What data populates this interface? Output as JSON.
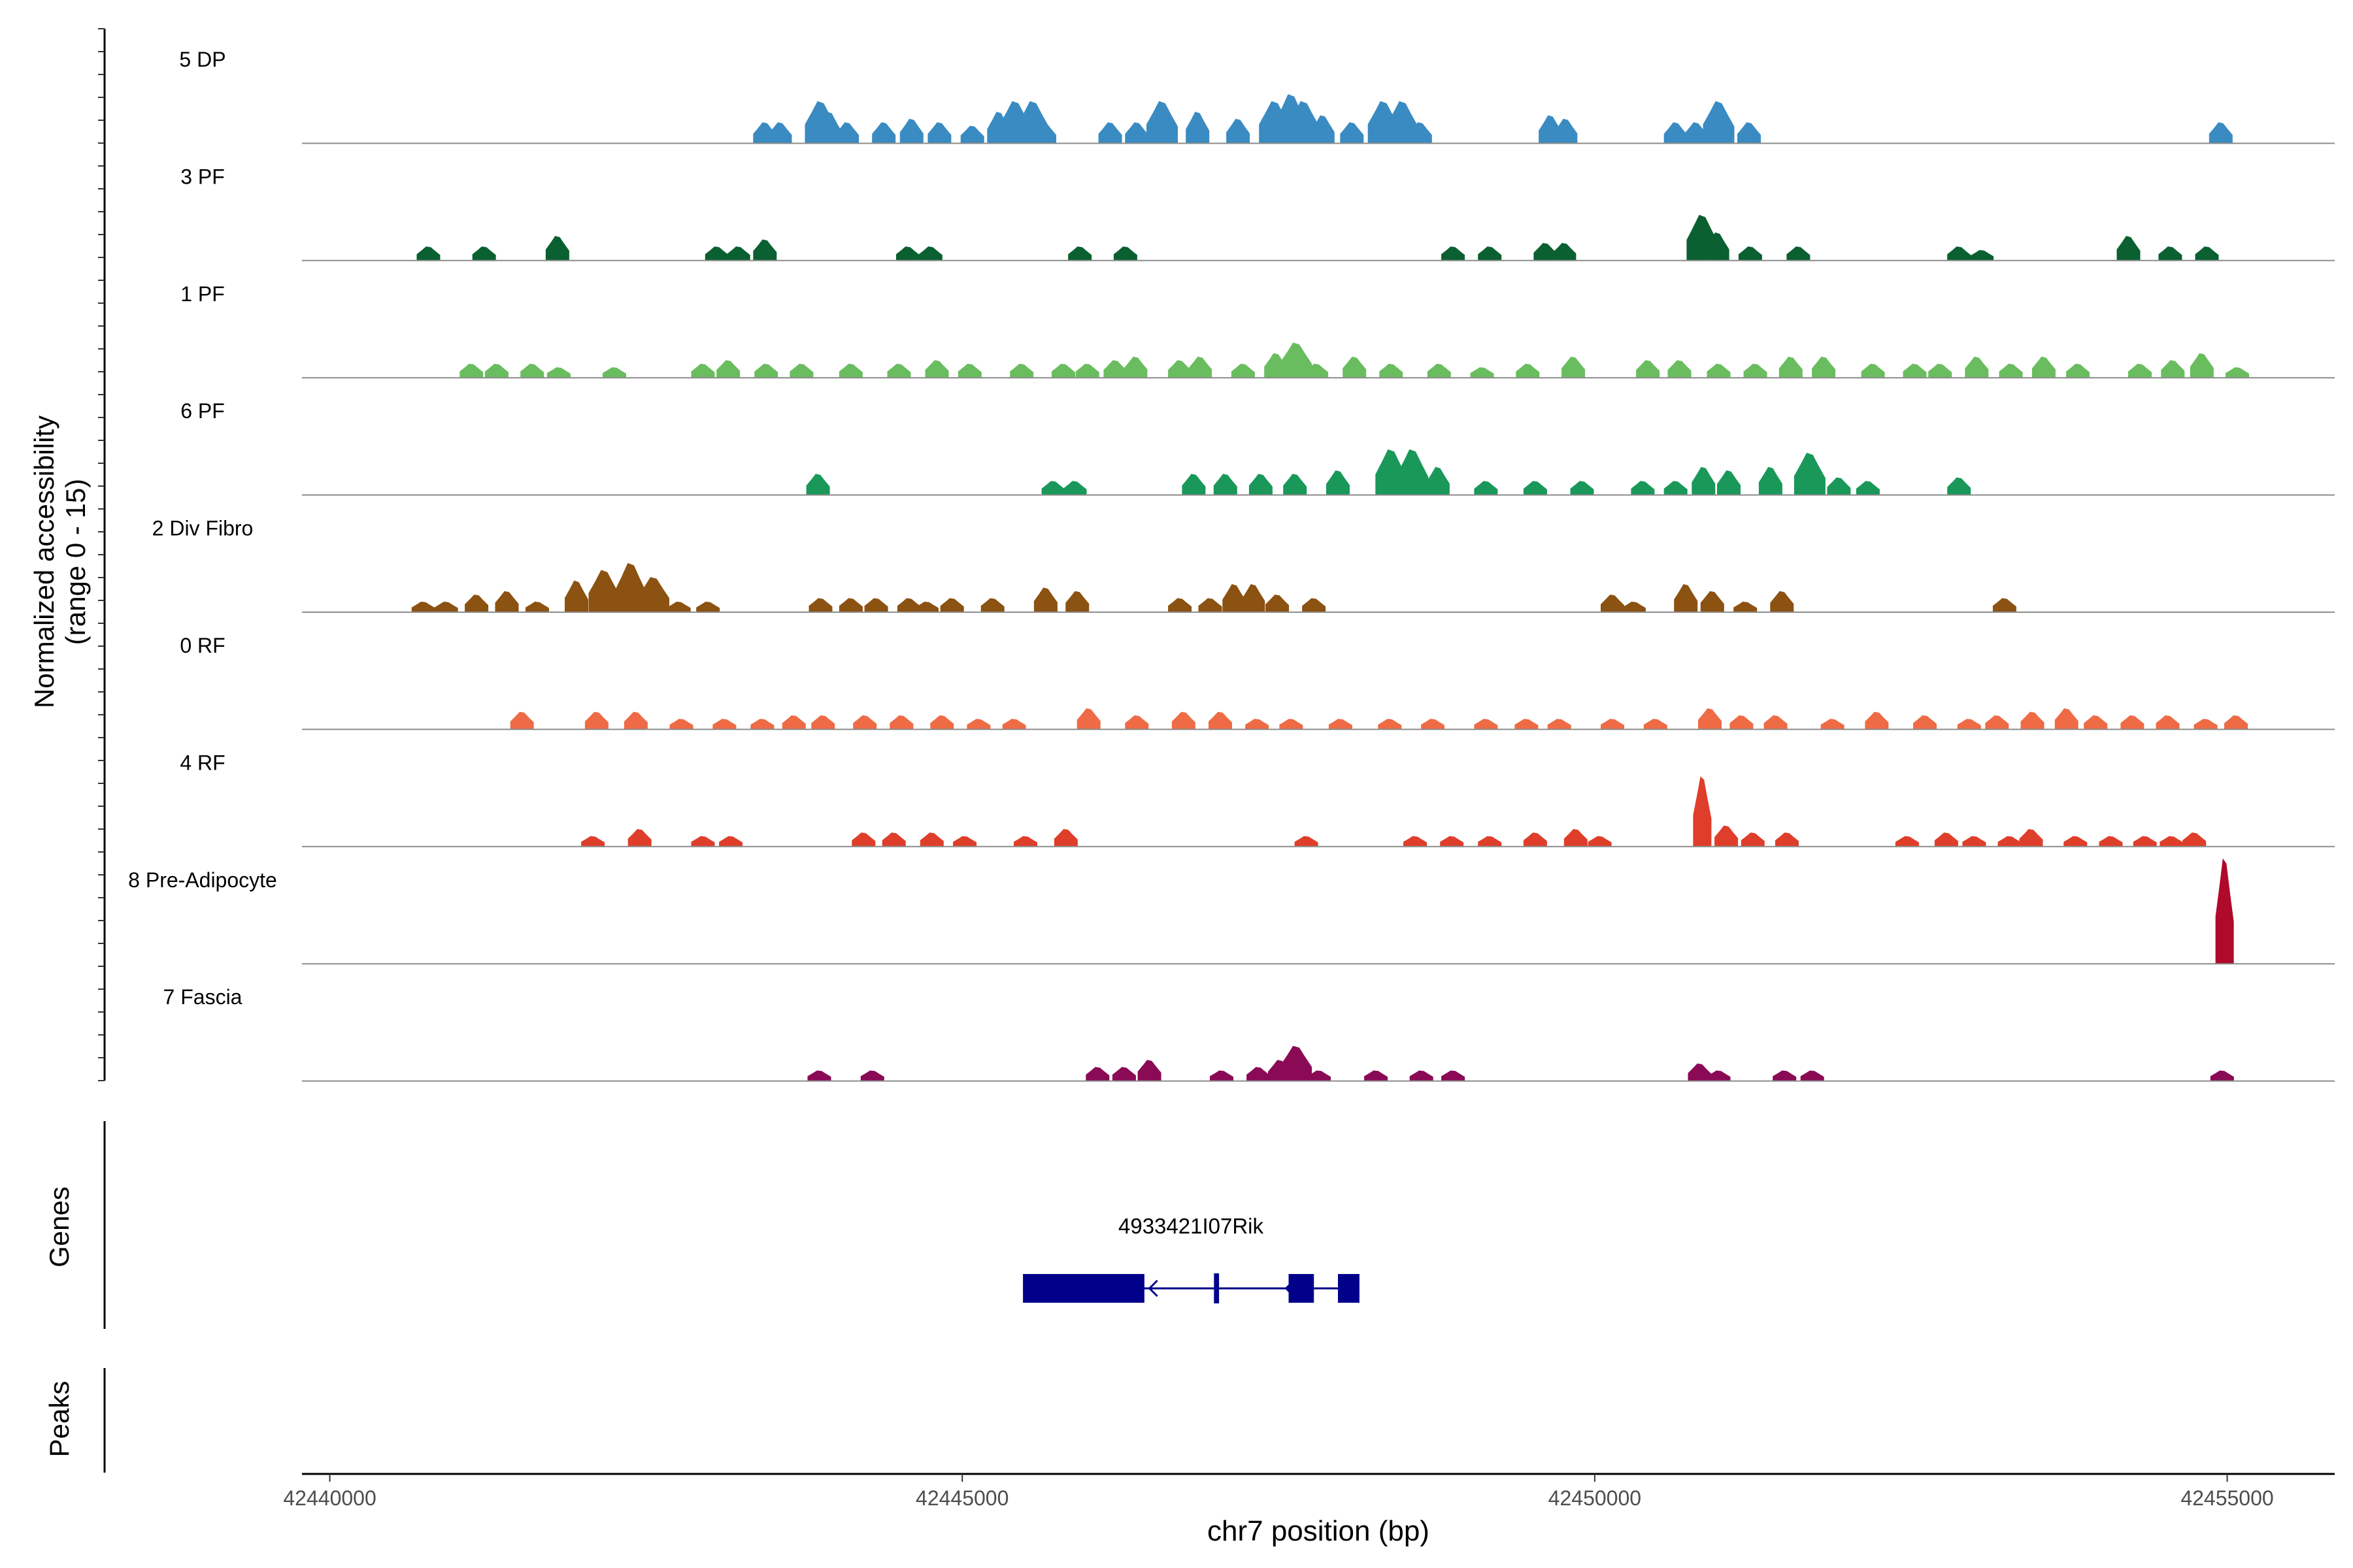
{
  "chart_data": {
    "type": "area",
    "title": "",
    "y_axis_label_line1": "Normalized accessibility",
    "y_axis_label_line2": "(range 0 - 15)",
    "y_range": [
      0,
      15
    ],
    "xlabel": "chr7 position (bp)",
    "x_range": [
      42439780,
      42455850
    ],
    "x_ticks": [
      42440000,
      42445000,
      42450000,
      42455000
    ],
    "x_tick_labels": [
      "42440000",
      "42445000",
      "42450000",
      "42455000"
    ],
    "tracks": [
      {
        "name": "5 DP",
        "color": "#3A8BC2",
        "peaks": [
          [
            42443440,
            3
          ],
          [
            42443560,
            3
          ],
          [
            42443880,
            6
          ],
          [
            42443950,
            4.5
          ],
          [
            42444090,
            3
          ],
          [
            42444380,
            3
          ],
          [
            42444600,
            3.5
          ],
          [
            42444820,
            3
          ],
          [
            42445080,
            2.5
          ],
          [
            42445290,
            4.5
          ],
          [
            42445420,
            6
          ],
          [
            42445560,
            6
          ],
          [
            42445650,
            3
          ],
          [
            42446170,
            3
          ],
          [
            42446380,
            3
          ],
          [
            42446580,
            6
          ],
          [
            42446860,
            4.5
          ],
          [
            42447180,
            3.5
          ],
          [
            42447470,
            6
          ],
          [
            42447600,
            7
          ],
          [
            42447700,
            6
          ],
          [
            42447850,
            4
          ],
          [
            42448080,
            3
          ],
          [
            42448330,
            6
          ],
          [
            42448480,
            6
          ],
          [
            42448620,
            3
          ],
          [
            42449650,
            4
          ],
          [
            42449770,
            3.5
          ],
          [
            42450640,
            3
          ],
          [
            42450800,
            3
          ],
          [
            42450980,
            6
          ],
          [
            42451220,
            3
          ],
          [
            42454950,
            3
          ]
        ]
      },
      {
        "name": "3 PF",
        "color": "#0A6030",
        "peaks": [
          [
            42440780,
            2
          ],
          [
            42441220,
            2
          ],
          [
            42441800,
            3.5
          ],
          [
            42443060,
            2
          ],
          [
            42443230,
            2
          ],
          [
            42443440,
            3
          ],
          [
            42444570,
            2
          ],
          [
            42444750,
            2
          ],
          [
            42445930,
            2
          ],
          [
            42446290,
            2
          ],
          [
            42448880,
            2
          ],
          [
            42449170,
            2
          ],
          [
            42449610,
            2.5
          ],
          [
            42449760,
            2.5
          ],
          [
            42450850,
            6.5
          ],
          [
            42450970,
            4
          ],
          [
            42451230,
            2
          ],
          [
            42451610,
            2
          ],
          [
            42452880,
            2
          ],
          [
            42453060,
            1.5
          ],
          [
            42454220,
            3.5
          ],
          [
            42454550,
            2
          ],
          [
            42454840,
            2
          ]
        ]
      },
      {
        "name": "1 PF",
        "color": "#6ABD5F",
        "peaks": [
          [
            42441120,
            2
          ],
          [
            42441320,
            2
          ],
          [
            42441600,
            2
          ],
          [
            42441810,
            1.5
          ],
          [
            42442250,
            1.5
          ],
          [
            42442950,
            2
          ],
          [
            42443150,
            2.5
          ],
          [
            42443450,
            2
          ],
          [
            42443730,
            2
          ],
          [
            42444120,
            2
          ],
          [
            42444500,
            2
          ],
          [
            42444800,
            2.5
          ],
          [
            42445060,
            2
          ],
          [
            42445470,
            2
          ],
          [
            42445800,
            2
          ],
          [
            42445990,
            2
          ],
          [
            42446210,
            2.5
          ],
          [
            42446370,
            3
          ],
          [
            42446720,
            2.5
          ],
          [
            42446880,
            3
          ],
          [
            42447220,
            2
          ],
          [
            42447480,
            3.5
          ],
          [
            42447640,
            5
          ],
          [
            42447800,
            2
          ],
          [
            42448100,
            3
          ],
          [
            42448390,
            2
          ],
          [
            42448770,
            2
          ],
          [
            42449110,
            1.5
          ],
          [
            42449470,
            2
          ],
          [
            42449830,
            3
          ],
          [
            42450420,
            2.5
          ],
          [
            42450670,
            2.5
          ],
          [
            42450980,
            2
          ],
          [
            42451270,
            2
          ],
          [
            42451550,
            3
          ],
          [
            42451810,
            3
          ],
          [
            42452200,
            2
          ],
          [
            42452530,
            2
          ],
          [
            42452730,
            2
          ],
          [
            42453020,
            3
          ],
          [
            42453290,
            2
          ],
          [
            42453550,
            3
          ],
          [
            42453820,
            2
          ],
          [
            42454310,
            2
          ],
          [
            42454570,
            2.5
          ],
          [
            42454800,
            3.5
          ],
          [
            42455080,
            1.5
          ]
        ]
      },
      {
        "name": "6 PF",
        "color": "#19985A",
        "peaks": [
          [
            42443860,
            3
          ],
          [
            42445720,
            2
          ],
          [
            42445890,
            2
          ],
          [
            42446830,
            3
          ],
          [
            42447080,
            3
          ],
          [
            42447360,
            3
          ],
          [
            42447630,
            3
          ],
          [
            42447970,
            3.5
          ],
          [
            42448390,
            6.5
          ],
          [
            42448560,
            6.5
          ],
          [
            42448760,
            4
          ],
          [
            42449140,
            2
          ],
          [
            42449530,
            2
          ],
          [
            42449900,
            2
          ],
          [
            42450380,
            2
          ],
          [
            42450640,
            2
          ],
          [
            42450860,
            4
          ],
          [
            42451060,
            3.5
          ],
          [
            42451390,
            4
          ],
          [
            42451700,
            6
          ],
          [
            42451930,
            2.5
          ],
          [
            42452160,
            2
          ],
          [
            42452880,
            2.5
          ]
        ]
      },
      {
        "name": "2 Div Fibro",
        "color": "#8B5212",
        "peaks": [
          [
            42440740,
            1.5
          ],
          [
            42440920,
            1.5
          ],
          [
            42441160,
            2.5
          ],
          [
            42441400,
            3
          ],
          [
            42441640,
            1.5
          ],
          [
            42441950,
            4.5
          ],
          [
            42442170,
            6
          ],
          [
            42442380,
            7
          ],
          [
            42442560,
            5
          ],
          [
            42442760,
            1.5
          ],
          [
            42442990,
            1.5
          ],
          [
            42443880,
            2
          ],
          [
            42444120,
            2
          ],
          [
            42444320,
            2
          ],
          [
            42444580,
            2
          ],
          [
            42444720,
            1.5
          ],
          [
            42444920,
            2
          ],
          [
            42445240,
            2
          ],
          [
            42445660,
            3.5
          ],
          [
            42445910,
            3
          ],
          [
            42446720,
            2
          ],
          [
            42446960,
            2
          ],
          [
            42447150,
            4
          ],
          [
            42447300,
            4
          ],
          [
            42447490,
            2.5
          ],
          [
            42447780,
            2
          ],
          [
            42450140,
            2.5
          ],
          [
            42450310,
            1.5
          ],
          [
            42450720,
            4
          ],
          [
            42450930,
            3
          ],
          [
            42451190,
            1.5
          ],
          [
            42451480,
            3
          ],
          [
            42453240,
            2
          ]
        ]
      },
      {
        "name": "0 RF",
        "color": "#EE6B45",
        "peaks": [
          [
            42441520,
            2.5
          ],
          [
            42442110,
            2.5
          ],
          [
            42442420,
            2.5
          ],
          [
            42442780,
            1.5
          ],
          [
            42443120,
            1.5
          ],
          [
            42443420,
            1.5
          ],
          [
            42443670,
            2
          ],
          [
            42443900,
            2
          ],
          [
            42444230,
            2
          ],
          [
            42444520,
            2
          ],
          [
            42444840,
            2
          ],
          [
            42445130,
            1.5
          ],
          [
            42445410,
            1.5
          ],
          [
            42446000,
            3
          ],
          [
            42446380,
            2
          ],
          [
            42446750,
            2.5
          ],
          [
            42447040,
            2.5
          ],
          [
            42447330,
            1.5
          ],
          [
            42447600,
            1.5
          ],
          [
            42447990,
            1.5
          ],
          [
            42448380,
            1.5
          ],
          [
            42448720,
            1.5
          ],
          [
            42449140,
            1.5
          ],
          [
            42449460,
            1.5
          ],
          [
            42449720,
            1.5
          ],
          [
            42450140,
            1.5
          ],
          [
            42450480,
            1.5
          ],
          [
            42450910,
            3
          ],
          [
            42451160,
            2
          ],
          [
            42451430,
            2
          ],
          [
            42451880,
            1.5
          ],
          [
            42452230,
            2.5
          ],
          [
            42452610,
            2
          ],
          [
            42452960,
            1.5
          ],
          [
            42453180,
            2
          ],
          [
            42453460,
            2.5
          ],
          [
            42453730,
            3
          ],
          [
            42453960,
            2
          ],
          [
            42454250,
            2
          ],
          [
            42454530,
            2
          ],
          [
            42454830,
            1.5
          ],
          [
            42455070,
            2
          ]
        ]
      },
      {
        "name": "4 RF",
        "color": "#DF3E2A",
        "peaks": [
          [
            42442080,
            1.5
          ],
          [
            42442450,
            2.5
          ],
          [
            42442950,
            1.5
          ],
          [
            42443170,
            1.5
          ],
          [
            42444220,
            2
          ],
          [
            42444460,
            2
          ],
          [
            42444760,
            2
          ],
          [
            42445020,
            1.5
          ],
          [
            42445500,
            1.5
          ],
          [
            42445820,
            2.5
          ],
          [
            42447720,
            1.5
          ],
          [
            42448580,
            1.5
          ],
          [
            42448870,
            1.5
          ],
          [
            42449170,
            1.5
          ],
          [
            42449530,
            2
          ],
          [
            42449850,
            2.5
          ],
          [
            42450040,
            1.5
          ],
          [
            42450850,
            10
          ],
          [
            42451040,
            3
          ],
          [
            42451250,
            2
          ],
          [
            42451520,
            2
          ],
          [
            42452470,
            1.5
          ],
          [
            42452780,
            2
          ],
          [
            42453000,
            1.5
          ],
          [
            42453280,
            1.5
          ],
          [
            42453450,
            2.5
          ],
          [
            42453800,
            1.5
          ],
          [
            42454080,
            1.5
          ],
          [
            42454350,
            1.5
          ],
          [
            42454560,
            1.5
          ],
          [
            42454740,
            2
          ]
        ]
      },
      {
        "name": "8 Pre-Adipocyte",
        "color": "#AF0A2A",
        "peaks": [
          [
            42454980,
            15
          ]
        ]
      },
      {
        "name": "7 Fascia",
        "color": "#8A0A56",
        "peaks": [
          [
            42443870,
            1.5
          ],
          [
            42444290,
            1.5
          ],
          [
            42446070,
            2
          ],
          [
            42446280,
            2
          ],
          [
            42446480,
            3
          ],
          [
            42447050,
            1.5
          ],
          [
            42447340,
            2
          ],
          [
            42447510,
            3
          ],
          [
            42447640,
            5
          ],
          [
            42447820,
            1.5
          ],
          [
            42448270,
            1.5
          ],
          [
            42448630,
            1.5
          ],
          [
            42448880,
            1.5
          ],
          [
            42450830,
            2.5
          ],
          [
            42450980,
            1.5
          ],
          [
            42451500,
            1.5
          ],
          [
            42451720,
            1.5
          ],
          [
            42454960,
            1.5
          ]
        ]
      }
    ],
    "genes_label": "Genes",
    "gene": {
      "name": "4933421I07Rik",
      "strand": "-",
      "start": 42445480,
      "end": 42448140,
      "exons": [
        [
          42445480,
          42446440
        ],
        [
          42446990,
          42447030
        ],
        [
          42447580,
          42447780
        ],
        [
          42447970,
          42448140
        ]
      ]
    },
    "peaks_label": "Peaks"
  }
}
